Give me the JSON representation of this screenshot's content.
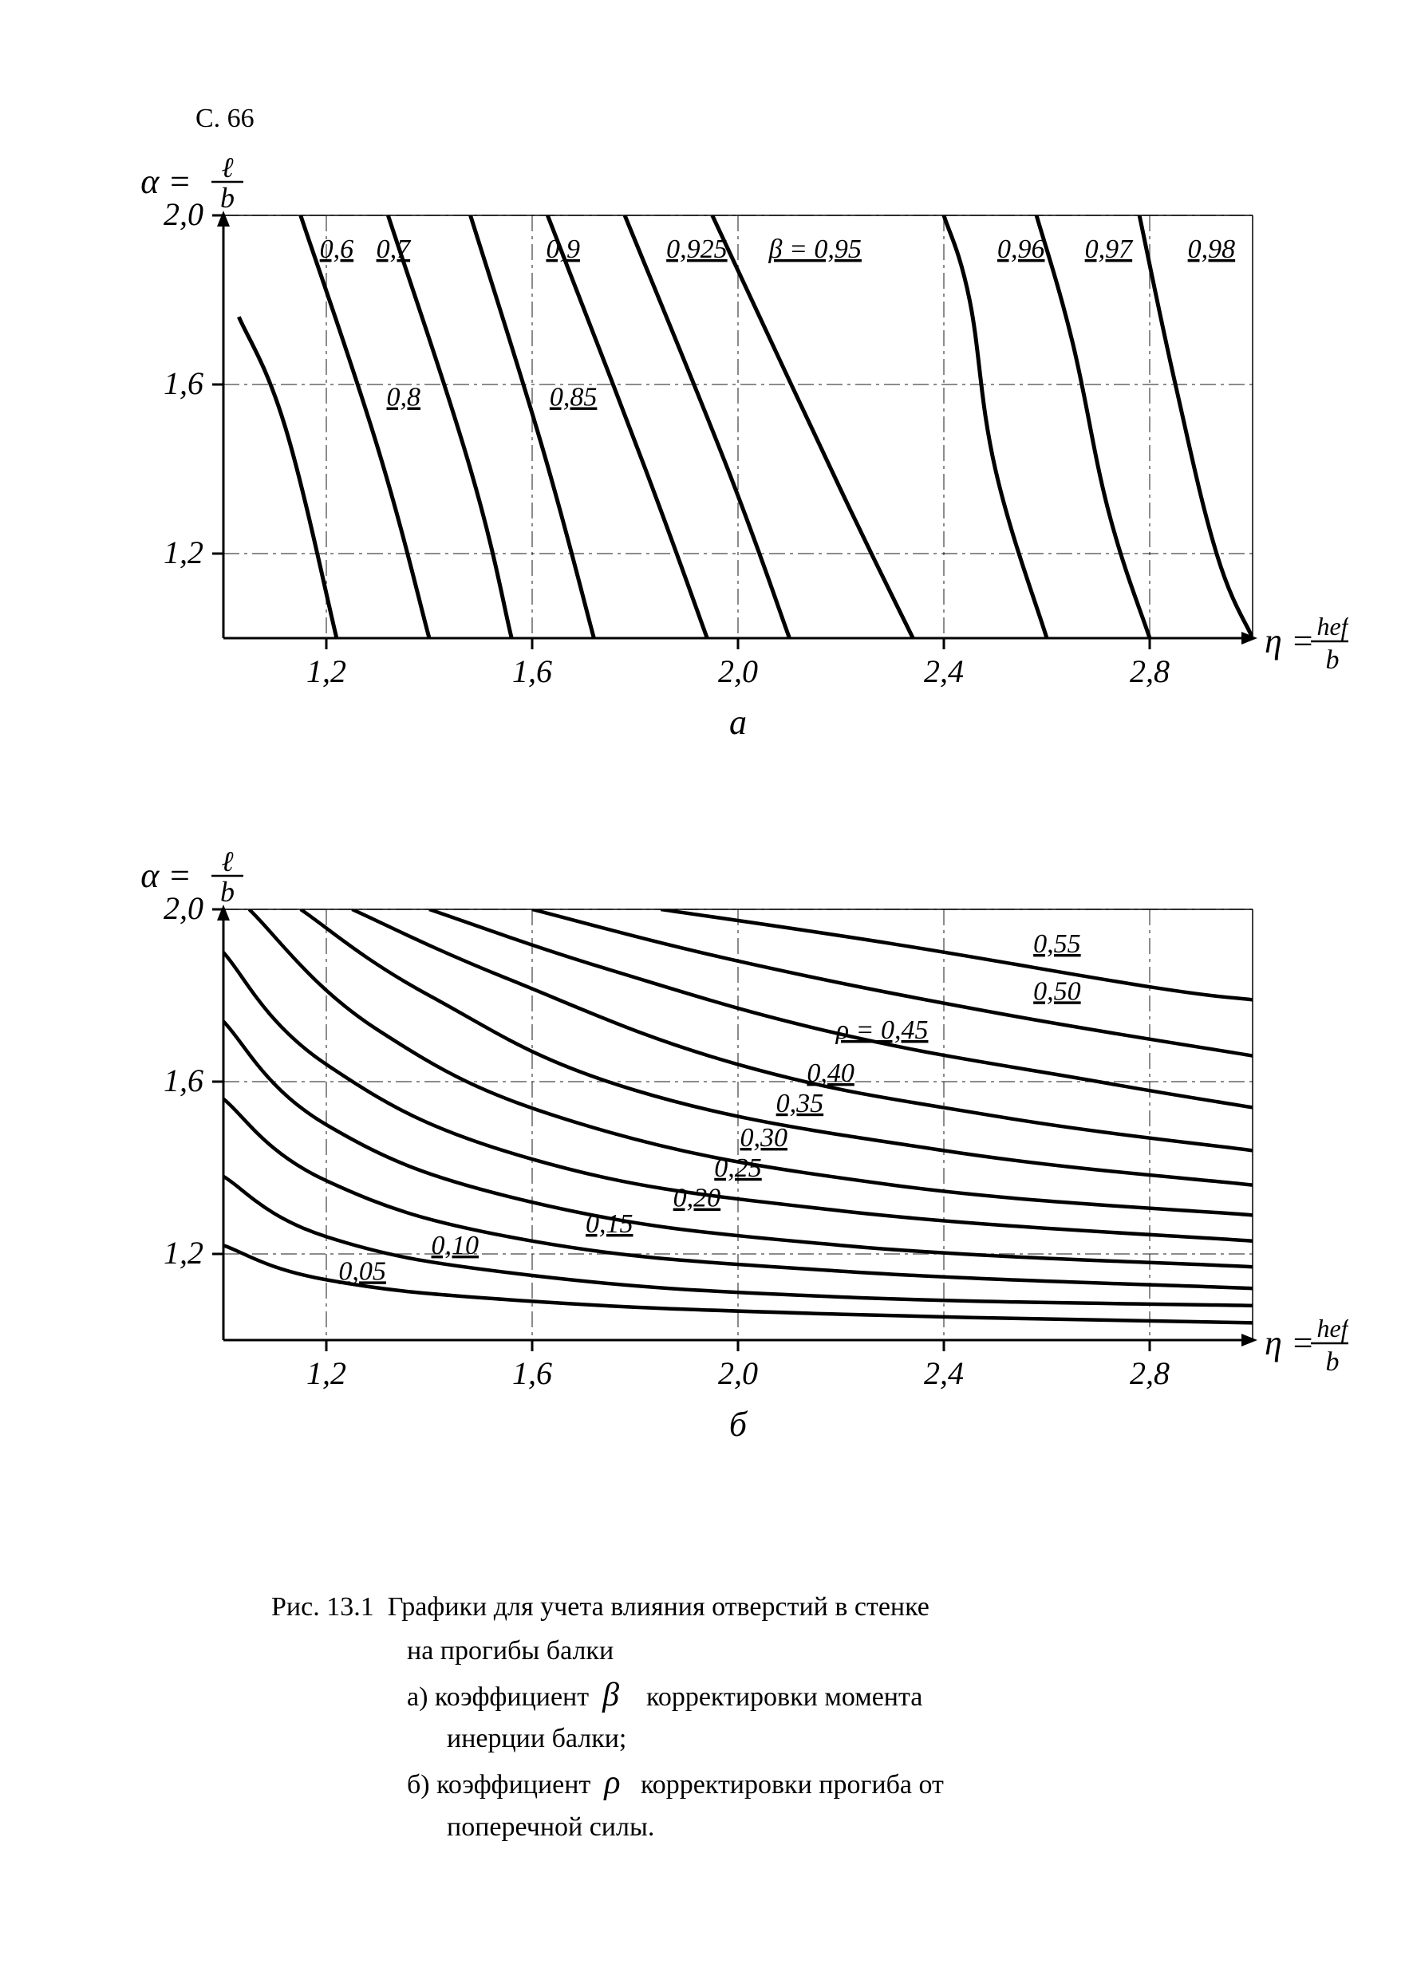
{
  "page_number": "С. 66",
  "colors": {
    "background": "#ffffff",
    "stroke": "#000000",
    "thin": "#000000"
  },
  "line_widths": {
    "frame": 3,
    "grid": 1.5,
    "tick": 3,
    "curve_a": 5,
    "curve_b": 4.5
  },
  "font": {
    "axis_tick_size": 40,
    "axis_tick_style": "italic",
    "curve_label_size": 34,
    "curve_label_style": "italic",
    "panel_label_size": 44,
    "caption_size": 34
  },
  "chart_a": {
    "type": "nomogram",
    "panel_label": "а",
    "y_axis_title": "α = ℓ / b",
    "x_axis_title": "η = hef / b",
    "x": {
      "min": 1.0,
      "max": 3.0,
      "ticks": [
        1.2,
        1.6,
        2.0,
        2.4,
        2.8
      ]
    },
    "y": {
      "min": 1.0,
      "max": 2.0,
      "ticks": [
        1.2,
        1.6,
        2.0
      ]
    },
    "curve_param": "β",
    "curve_full_label": "β = 0,95",
    "curves": [
      {
        "label": "0,6",
        "beta": 0.6,
        "label_pos": {
          "x": 1.22,
          "y": 1.9
        },
        "points": [
          [
            1.03,
            1.76
          ],
          [
            1.12,
            1.5
          ],
          [
            1.22,
            1.0
          ]
        ]
      },
      {
        "label": "0,7",
        "beta": 0.7,
        "label_pos": {
          "x": 1.33,
          "y": 1.9
        },
        "points": [
          [
            1.15,
            2.0
          ],
          [
            1.3,
            1.45
          ],
          [
            1.4,
            1.0
          ]
        ]
      },
      {
        "label": "0,8",
        "beta": 0.8,
        "label_pos": {
          "x": 1.35,
          "y": 1.55
        },
        "points": [
          [
            1.32,
            2.0
          ],
          [
            1.48,
            1.4
          ],
          [
            1.56,
            1.0
          ]
        ]
      },
      {
        "label": "0,85",
        "beta": 0.85,
        "label_pos": {
          "x": 1.68,
          "y": 1.55
        },
        "points": [
          [
            1.48,
            2.0
          ],
          [
            1.62,
            1.45
          ],
          [
            1.72,
            1.0
          ]
        ]
      },
      {
        "label": "0,9",
        "beta": 0.9,
        "label_pos": {
          "x": 1.66,
          "y": 1.9
        },
        "points": [
          [
            1.63,
            2.0
          ],
          [
            1.82,
            1.4
          ],
          [
            1.94,
            1.0
          ]
        ]
      },
      {
        "label": "0,925",
        "beta": 0.925,
        "label_pos": {
          "x": 1.92,
          "y": 1.9
        },
        "points": [
          [
            1.78,
            2.0
          ],
          [
            1.98,
            1.4
          ],
          [
            2.1,
            1.0
          ]
        ]
      },
      {
        "label": "β = 0,95",
        "beta": 0.95,
        "label_pos": {
          "x": 2.15,
          "y": 1.9
        },
        "is_reference": true,
        "points": [
          [
            1.95,
            2.0
          ],
          [
            2.2,
            1.35
          ],
          [
            2.34,
            1.0
          ]
        ]
      },
      {
        "label": "0,96",
        "beta": 0.96,
        "label_pos": {
          "x": 2.55,
          "y": 1.9
        },
        "points": [
          [
            2.4,
            2.0
          ],
          [
            2.45,
            1.8
          ],
          [
            2.5,
            1.4
          ],
          [
            2.6,
            1.0
          ]
        ]
      },
      {
        "label": "0,97",
        "beta": 0.97,
        "label_pos": {
          "x": 2.72,
          "y": 1.9
        },
        "points": [
          [
            2.58,
            2.0
          ],
          [
            2.65,
            1.7
          ],
          [
            2.72,
            1.3
          ],
          [
            2.8,
            1.0
          ]
        ]
      },
      {
        "label": "0,98",
        "beta": 0.98,
        "label_pos": {
          "x": 2.92,
          "y": 1.9
        },
        "points": [
          [
            2.78,
            2.0
          ],
          [
            2.85,
            1.6
          ],
          [
            2.93,
            1.2
          ],
          [
            3.0,
            1.0
          ]
        ]
      }
    ]
  },
  "chart_b": {
    "type": "nomogram",
    "panel_label": "б",
    "y_axis_title": "α = ℓ / b",
    "x_axis_title": "η = hef / b",
    "x": {
      "min": 1.0,
      "max": 3.0,
      "ticks": [
        1.2,
        1.6,
        2.0,
        2.4,
        2.8
      ]
    },
    "y": {
      "min": 1.0,
      "max": 2.0,
      "ticks": [
        1.2,
        1.6,
        2.0
      ]
    },
    "curve_param": "ρ",
    "curves": [
      {
        "label": "0,05",
        "rho": 0.05,
        "label_pos": {
          "x": 1.27,
          "y": 1.14
        },
        "points": [
          [
            1.0,
            1.22
          ],
          [
            1.2,
            1.14
          ],
          [
            1.6,
            1.09
          ],
          [
            2.2,
            1.06
          ],
          [
            3.0,
            1.04
          ]
        ]
      },
      {
        "label": "0,10",
        "rho": 0.1,
        "label_pos": {
          "x": 1.45,
          "y": 1.2
        },
        "points": [
          [
            1.0,
            1.38
          ],
          [
            1.2,
            1.24
          ],
          [
            1.6,
            1.15
          ],
          [
            2.2,
            1.1
          ],
          [
            3.0,
            1.08
          ]
        ]
      },
      {
        "label": "0,15",
        "rho": 0.15,
        "label_pos": {
          "x": 1.75,
          "y": 1.25
        },
        "points": [
          [
            1.0,
            1.56
          ],
          [
            1.2,
            1.37
          ],
          [
            1.6,
            1.23
          ],
          [
            2.2,
            1.16
          ],
          [
            3.0,
            1.12
          ]
        ]
      },
      {
        "label": "0,20",
        "rho": 0.2,
        "label_pos": {
          "x": 1.92,
          "y": 1.31
        },
        "points": [
          [
            1.0,
            1.74
          ],
          [
            1.2,
            1.5
          ],
          [
            1.6,
            1.32
          ],
          [
            2.2,
            1.22
          ],
          [
            3.0,
            1.17
          ]
        ]
      },
      {
        "label": "0,25",
        "rho": 0.25,
        "label_pos": {
          "x": 2.0,
          "y": 1.38
        },
        "points": [
          [
            1.0,
            1.9
          ],
          [
            1.2,
            1.64
          ],
          [
            1.6,
            1.42
          ],
          [
            2.2,
            1.3
          ],
          [
            3.0,
            1.23
          ]
        ]
      },
      {
        "label": "0,30",
        "rho": 0.3,
        "label_pos": {
          "x": 2.05,
          "y": 1.45
        },
        "points": [
          [
            1.05,
            2.0
          ],
          [
            1.3,
            1.72
          ],
          [
            1.7,
            1.5
          ],
          [
            2.3,
            1.36
          ],
          [
            3.0,
            1.29
          ]
        ]
      },
      {
        "label": "0,35",
        "rho": 0.35,
        "label_pos": {
          "x": 2.12,
          "y": 1.53
        },
        "points": [
          [
            1.15,
            2.0
          ],
          [
            1.4,
            1.8
          ],
          [
            1.8,
            1.58
          ],
          [
            2.4,
            1.44
          ],
          [
            3.0,
            1.36
          ]
        ]
      },
      {
        "label": "0,40",
        "rho": 0.4,
        "label_pos": {
          "x": 2.18,
          "y": 1.6
        },
        "points": [
          [
            1.25,
            2.0
          ],
          [
            1.55,
            1.84
          ],
          [
            2.0,
            1.64
          ],
          [
            2.5,
            1.52
          ],
          [
            3.0,
            1.44
          ]
        ]
      },
      {
        "label": "ρ = 0,45",
        "rho": 0.45,
        "label_pos": {
          "x": 2.28,
          "y": 1.7
        },
        "is_reference": true,
        "points": [
          [
            1.4,
            2.0
          ],
          [
            1.75,
            1.86
          ],
          [
            2.2,
            1.71
          ],
          [
            2.7,
            1.6
          ],
          [
            3.0,
            1.54
          ]
        ]
      },
      {
        "label": "0,50",
        "rho": 0.5,
        "label_pos": {
          "x": 2.62,
          "y": 1.79
        },
        "points": [
          [
            1.6,
            2.0
          ],
          [
            2.0,
            1.88
          ],
          [
            2.5,
            1.76
          ],
          [
            3.0,
            1.66
          ]
        ]
      },
      {
        "label": "0,55",
        "rho": 0.55,
        "label_pos": {
          "x": 2.62,
          "y": 1.9
        },
        "points": [
          [
            1.85,
            2.0
          ],
          [
            2.3,
            1.92
          ],
          [
            2.8,
            1.82
          ],
          [
            3.0,
            1.79
          ]
        ]
      }
    ]
  },
  "caption": {
    "fig_label": "Рис. 13.1",
    "title": "Графики для учета влияния отверстий в стенке на прогибы балки",
    "items": [
      {
        "letter": "а)",
        "text1": "коэффициент",
        "symbol": "β",
        "text2": "корректировки момента инерции балки;"
      },
      {
        "letter": "б)",
        "text1": "коэффициент",
        "symbol": "ρ",
        "text2": "корректировки прогиба от поперечной силы."
      }
    ]
  }
}
